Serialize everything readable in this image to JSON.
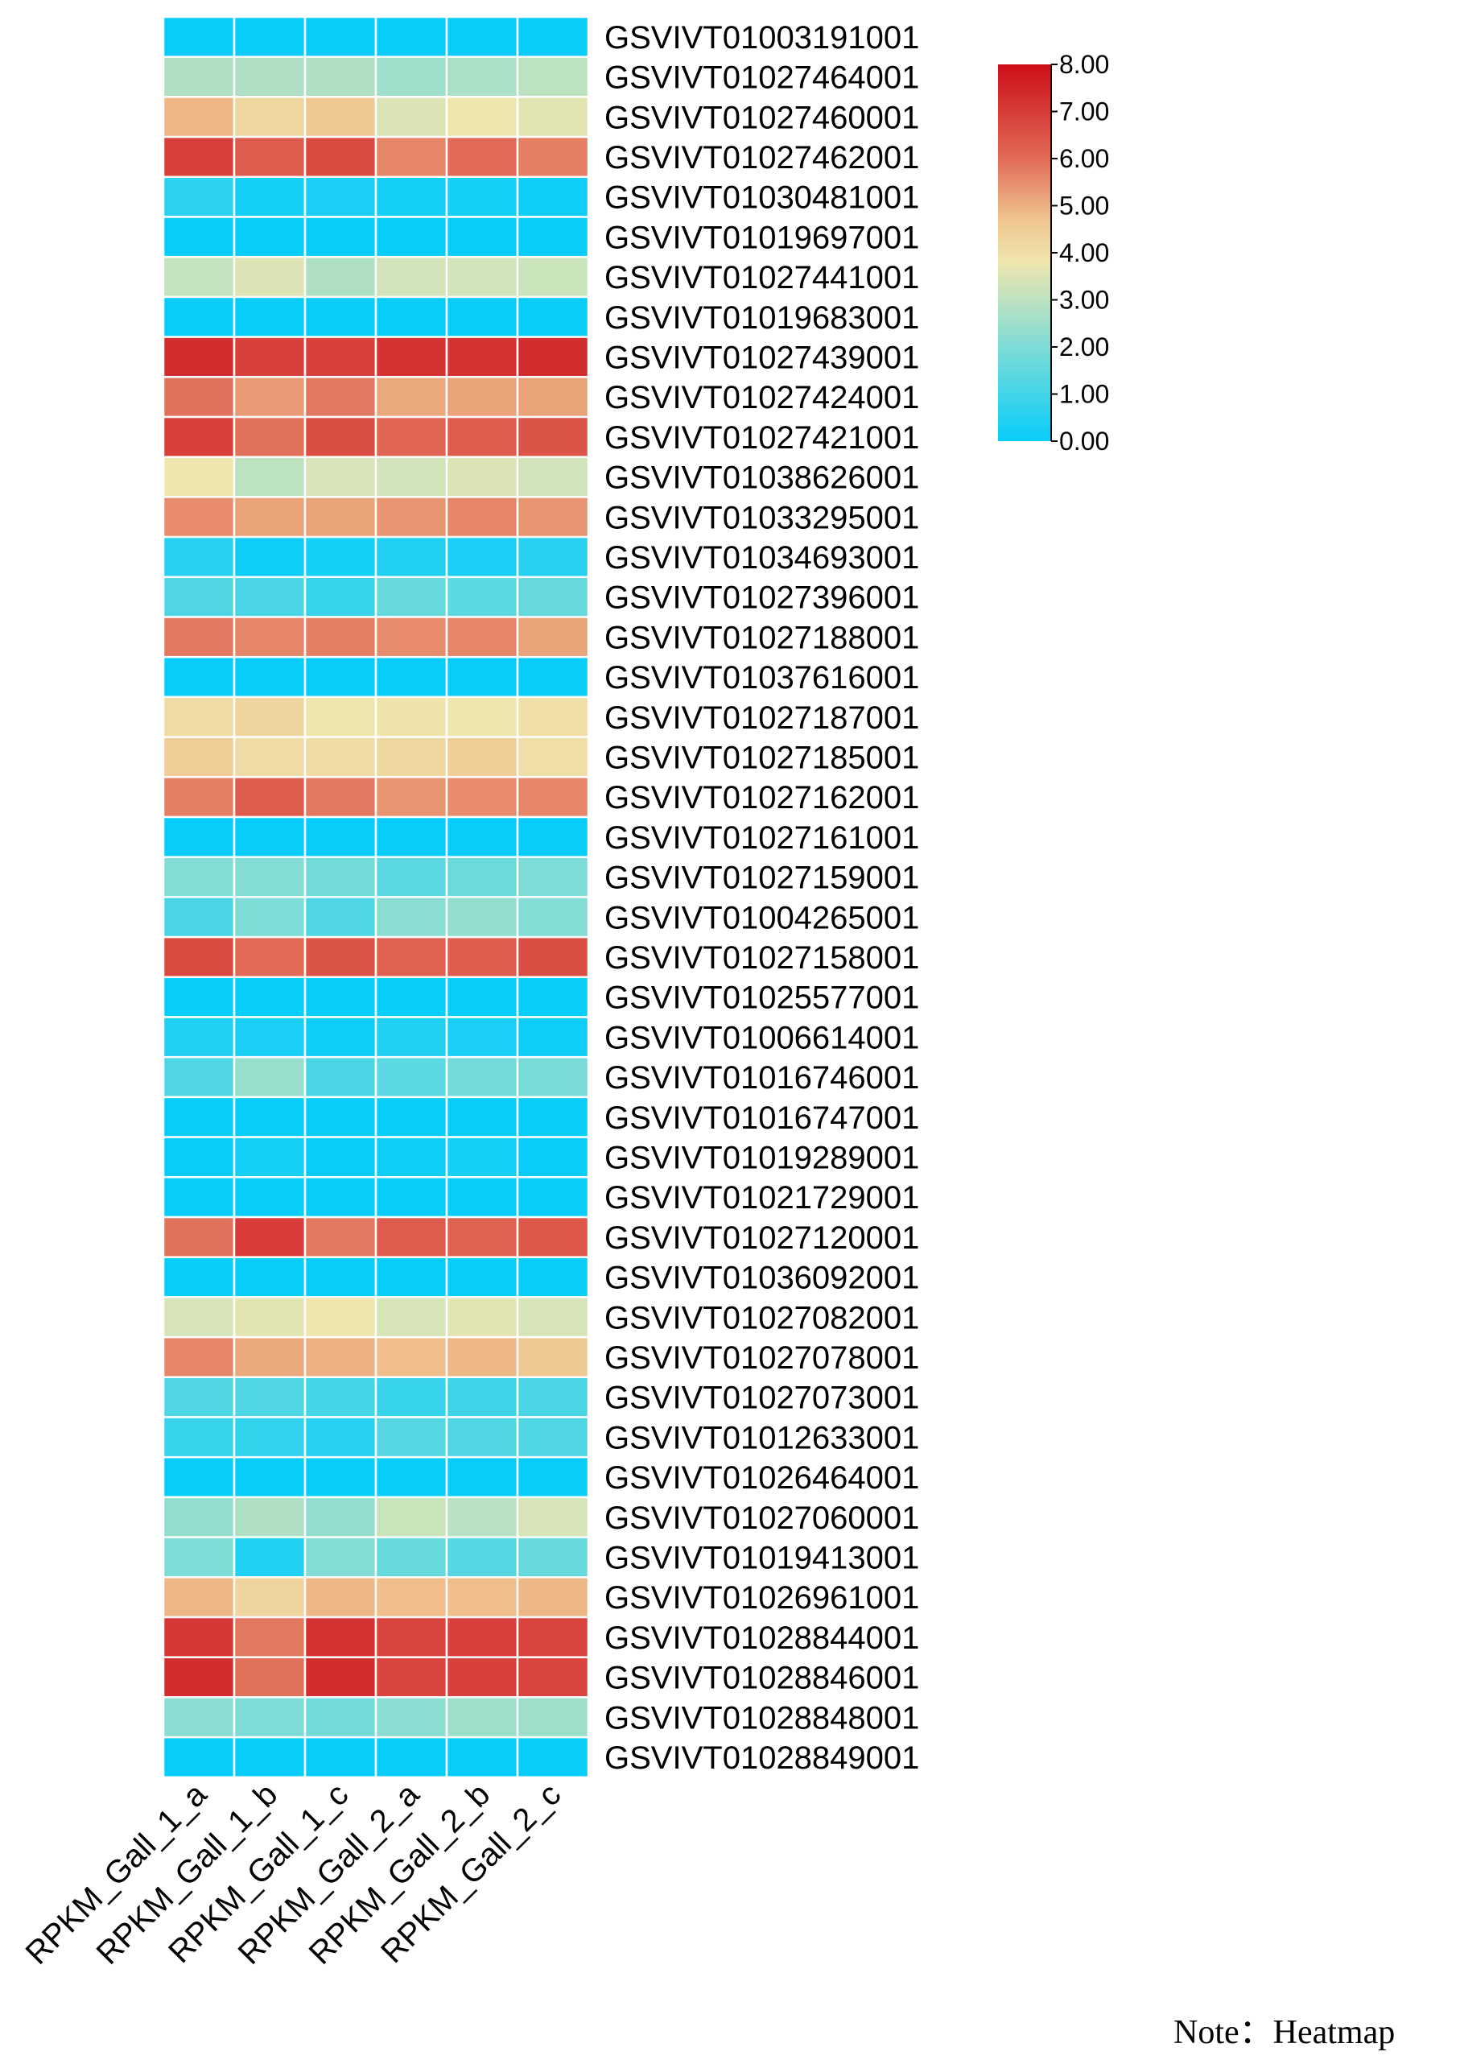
{
  "chart_data": {
    "type": "heatmap",
    "columns": [
      "RPKM_Gall_1_a",
      "RPKM_Gall_1_b",
      "RPKM_Gall_1_c",
      "RPKM_Gall_2_a",
      "RPKM_Gall_2_b",
      "RPKM_Gall_2_c"
    ],
    "rows": [
      "GSVIVT01003191001",
      "GSVIVT01027464001",
      "GSVIVT01027460001",
      "GSVIVT01027462001",
      "GSVIVT01030481001",
      "GSVIVT01019697001",
      "GSVIVT01027441001",
      "GSVIVT01019683001",
      "GSVIVT01027439001",
      "GSVIVT01027424001",
      "GSVIVT01027421001",
      "GSVIVT01038626001",
      "GSVIVT01033295001",
      "GSVIVT01034693001",
      "GSVIVT01027396001",
      "GSVIVT01027188001",
      "GSVIVT01037616001",
      "GSVIVT01027187001",
      "GSVIVT01027185001",
      "GSVIVT01027162001",
      "GSVIVT01027161001",
      "GSVIVT01027159001",
      "GSVIVT01004265001",
      "GSVIVT01027158001",
      "GSVIVT01025577001",
      "GSVIVT01006614001",
      "GSVIVT01016746001",
      "GSVIVT01016747001",
      "GSVIVT01019289001",
      "GSVIVT01021729001",
      "GSVIVT01027120001",
      "GSVIVT01036092001",
      "GSVIVT01027082001",
      "GSVIVT01027078001",
      "GSVIVT01027073001",
      "GSVIVT01012633001",
      "GSVIVT01026464001",
      "GSVIVT01027060001",
      "GSVIVT01019413001",
      "GSVIVT01026961001",
      "GSVIVT01028844001",
      "GSVIVT01028846001",
      "GSVIVT01028848001",
      "GSVIVT01028849001"
    ],
    "values": [
      [
        0.0,
        0.0,
        0.0,
        0.0,
        0.0,
        0.0
      ],
      [
        2.8,
        2.8,
        2.8,
        2.5,
        2.7,
        3.0
      ],
      [
        4.9,
        4.2,
        4.6,
        3.5,
        3.8,
        3.6
      ],
      [
        6.9,
        6.3,
        6.7,
        5.6,
        6.0,
        5.7
      ],
      [
        0.6,
        0.2,
        0.3,
        0.2,
        0.2,
        0.1
      ],
      [
        0.0,
        0.0,
        0.0,
        0.0,
        0.0,
        0.0
      ],
      [
        3.1,
        3.5,
        2.8,
        3.3,
        3.3,
        3.2
      ],
      [
        0.0,
        0.0,
        0.0,
        0.0,
        0.0,
        0.0
      ],
      [
        7.3,
        6.9,
        6.9,
        7.2,
        7.2,
        7.3
      ],
      [
        5.9,
        5.3,
        5.8,
        5.1,
        5.2,
        5.2
      ],
      [
        6.9,
        5.9,
        6.6,
        6.1,
        6.3,
        6.5
      ],
      [
        3.8,
        3.0,
        3.4,
        3.3,
        3.5,
        3.3
      ],
      [
        5.5,
        5.2,
        5.2,
        5.4,
        5.6,
        5.4
      ],
      [
        0.5,
        0.1,
        0.2,
        0.4,
        0.3,
        0.5
      ],
      [
        1.2,
        1.1,
        0.8,
        1.6,
        1.4,
        1.6
      ],
      [
        5.8,
        5.6,
        5.7,
        5.5,
        5.6,
        5.2
      ],
      [
        0.0,
        0.0,
        0.0,
        0.0,
        0.0,
        0.0
      ],
      [
        4.1,
        4.3,
        3.8,
        3.9,
        3.8,
        4.0
      ],
      [
        4.5,
        4.1,
        4.1,
        4.2,
        4.5,
        4.0
      ],
      [
        5.7,
        6.3,
        5.8,
        5.4,
        5.5,
        5.6
      ],
      [
        0.0,
        0.0,
        0.0,
        0.0,
        0.0,
        0.0
      ],
      [
        2.1,
        2.1,
        1.8,
        1.4,
        1.7,
        2.0
      ],
      [
        1.1,
        2.0,
        1.2,
        2.2,
        2.3,
        2.1
      ],
      [
        6.7,
        6.0,
        6.5,
        6.2,
        6.3,
        6.6
      ],
      [
        0.0,
        0.0,
        0.0,
        0.0,
        0.0,
        0.0
      ],
      [
        0.4,
        0.3,
        0.1,
        0.4,
        0.3,
        0.1
      ],
      [
        1.2,
        2.4,
        1.1,
        1.4,
        1.8,
        1.9
      ],
      [
        0.0,
        0.0,
        0.0,
        0.0,
        0.0,
        0.0
      ],
      [
        0.0,
        0.2,
        0.0,
        0.1,
        0.2,
        0.0
      ],
      [
        0.0,
        0.0,
        0.0,
        0.0,
        0.0,
        0.0
      ],
      [
        5.9,
        7.0,
        5.8,
        6.3,
        6.2,
        6.4
      ],
      [
        0.0,
        0.0,
        0.0,
        0.0,
        0.0,
        0.0
      ],
      [
        3.4,
        3.6,
        3.8,
        3.4,
        3.6,
        3.4
      ],
      [
        5.6,
        5.1,
        5.0,
        4.8,
        4.9,
        4.6
      ],
      [
        1.2,
        1.2,
        1.0,
        0.8,
        0.9,
        1.1
      ],
      [
        0.8,
        0.7,
        0.5,
        1.3,
        1.2,
        1.2
      ],
      [
        0.0,
        0.0,
        0.0,
        0.0,
        0.0,
        0.0
      ],
      [
        2.3,
        2.8,
        2.3,
        3.2,
        2.9,
        3.4
      ],
      [
        2.0,
        0.4,
        2.1,
        1.6,
        1.3,
        1.6
      ],
      [
        4.9,
        4.3,
        4.9,
        4.8,
        4.8,
        4.9
      ],
      [
        7.1,
        5.8,
        7.2,
        6.8,
        6.9,
        6.8
      ],
      [
        7.3,
        5.9,
        7.3,
        6.8,
        6.9,
        6.8
      ],
      [
        2.2,
        2.0,
        1.8,
        2.2,
        2.5,
        2.5
      ],
      [
        0.0,
        0.0,
        0.0,
        0.0,
        0.0,
        0.0
      ]
    ],
    "colorbar": {
      "min": 0.0,
      "max": 8.0,
      "ticks": [
        "8.00",
        "7.00",
        "6.00",
        "5.00",
        "4.00",
        "3.00",
        "2.00",
        "1.00",
        "0.00"
      ],
      "stops": [
        {
          "value": 0.0,
          "color": "#08cdfa"
        },
        {
          "value": 2.0,
          "color": "#7edcd6"
        },
        {
          "value": 3.8,
          "color": "#efe6ae"
        },
        {
          "value": 4.7,
          "color": "#f0c58f"
        },
        {
          "value": 6.0,
          "color": "#e16a57"
        },
        {
          "value": 8.0,
          "color": "#cc0e19"
        }
      ]
    },
    "gridline_color": "#ffffff"
  },
  "note": "Note：Heatmap"
}
